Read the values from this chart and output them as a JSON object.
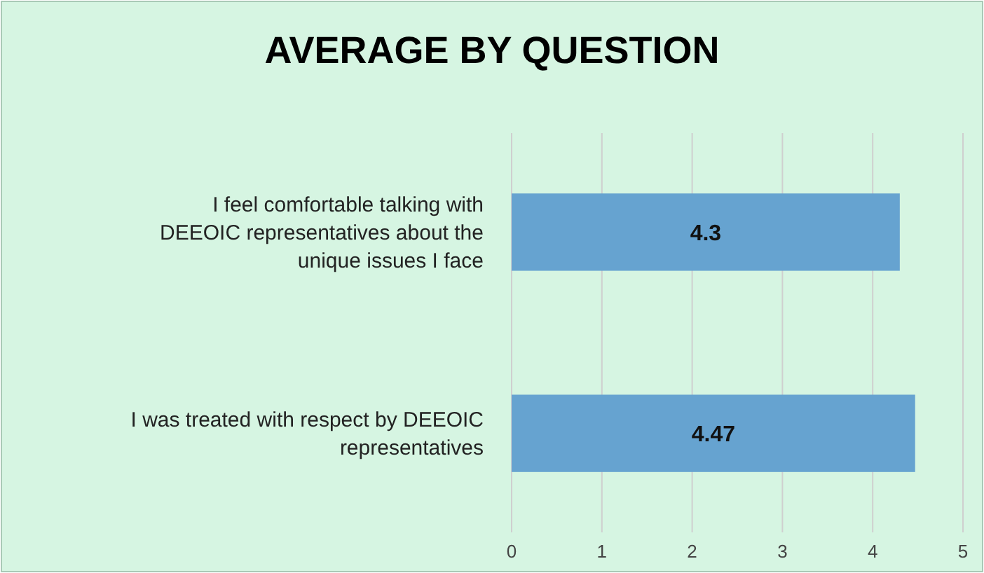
{
  "chart_data": {
    "type": "bar",
    "orientation": "horizontal",
    "title": "AVERAGE BY QUESTION",
    "categories": [
      "I feel comfortable talking with DEEOIC representatives about the unique issues I face",
      "I was treated with respect by DEEOIC representatives"
    ],
    "values": [
      4.3,
      4.47
    ],
    "color": "#66a3d0",
    "xlim": [
      0,
      5
    ],
    "xticks": [
      0,
      1,
      2,
      3,
      4,
      5
    ],
    "grid": "x",
    "data_labels": true
  }
}
